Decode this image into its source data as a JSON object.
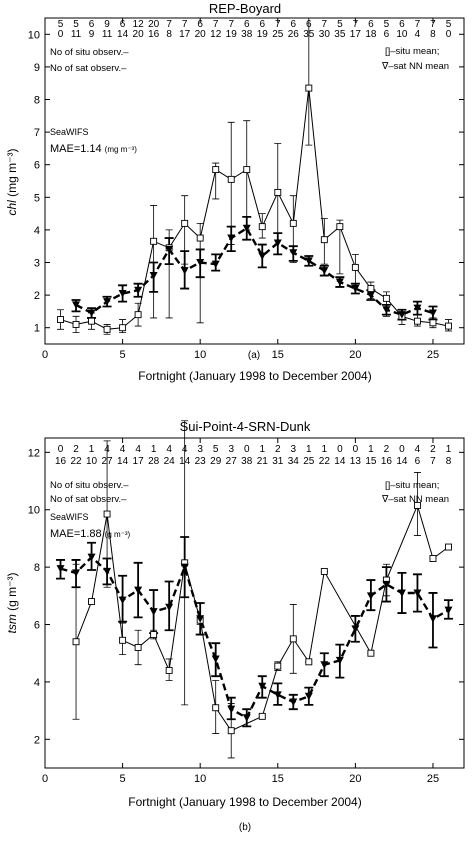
{
  "chart_data": [
    {
      "type": "line",
      "title": "REP-Boyard",
      "xlabel": "Fortnight  (January 1998 to December 2004)",
      "ylabel": "chl (mg m⁻³)",
      "ylabel_var": "chl",
      "ylabel_unit": " (mg m⁻³)",
      "xlim": [
        0,
        27
      ],
      "ylim": [
        0.5,
        10.5
      ],
      "xticks": [
        0,
        5,
        10,
        15,
        20,
        25
      ],
      "yticks": [
        1,
        2,
        3,
        4,
        5,
        6,
        7,
        8,
        9,
        10
      ],
      "panel_label": "(a)",
      "legend": {
        "situ": "[]–situ mean;",
        "sat": "∇–sat NN mean"
      },
      "count_legend": {
        "situ": "No of situ observ.–",
        "sat": "No of sat observ.–"
      },
      "sensor": "SeaWIFS",
      "mae": "MAE=1.14",
      "mae_unit": "(mg m⁻³)",
      "counts": [
        {
          "x": 1,
          "situ": "5",
          "sat": "0"
        },
        {
          "x": 2,
          "situ": "5",
          "sat": "11"
        },
        {
          "x": 3,
          "situ": "6",
          "sat": "9"
        },
        {
          "x": 4,
          "situ": "9",
          "sat": "11"
        },
        {
          "x": 5,
          "situ": "6",
          "sat": "14"
        },
        {
          "x": 6,
          "situ": "12",
          "sat": "20"
        },
        {
          "x": 7,
          "situ": "20",
          "sat": "16"
        },
        {
          "x": 8,
          "situ": "7",
          "sat": "8"
        },
        {
          "x": 9,
          "situ": "7",
          "sat": "17"
        },
        {
          "x": 10,
          "situ": "6",
          "sat": "20"
        },
        {
          "x": 11,
          "situ": "7",
          "sat": "12"
        },
        {
          "x": 12,
          "situ": "7",
          "sat": "19"
        },
        {
          "x": 13,
          "situ": "6",
          "sat": "38"
        },
        {
          "x": 14,
          "situ": "6",
          "sat": "19"
        },
        {
          "x": 15,
          "situ": "7",
          "sat": "25"
        },
        {
          "x": 16,
          "situ": "6",
          "sat": "26"
        },
        {
          "x": 17,
          "situ": "6",
          "sat": "35"
        },
        {
          "x": 18,
          "situ": "7",
          "sat": "30"
        },
        {
          "x": 19,
          "situ": "5",
          "sat": "35"
        },
        {
          "x": 20,
          "situ": "7",
          "sat": "17"
        },
        {
          "x": 21,
          "situ": "6",
          "sat": "18"
        },
        {
          "x": 22,
          "situ": "5",
          "sat": "6"
        },
        {
          "x": 23,
          "situ": "6",
          "sat": "10"
        },
        {
          "x": 24,
          "situ": "7",
          "sat": "4"
        },
        {
          "x": 25,
          "situ": "7",
          "sat": "8"
        },
        {
          "x": 26,
          "situ": "5",
          "sat": "0"
        }
      ],
      "series": [
        {
          "name": "situ mean",
          "style": "solid-square",
          "points": [
            {
              "x": 1,
              "y": 1.25,
              "lo": 0.95,
              "hi": 1.55
            },
            {
              "x": 2,
              "y": 1.1,
              "lo": 0.85,
              "hi": 1.35
            },
            {
              "x": 3,
              "y": 1.2,
              "lo": 0.95,
              "hi": 1.45
            },
            {
              "x": 4,
              "y": 0.95,
              "lo": 0.8,
              "hi": 1.1
            },
            {
              "x": 5,
              "y": 1.0,
              "lo": 0.85,
              "hi": 1.25
            },
            {
              "x": 6,
              "y": 1.4,
              "lo": 1.05,
              "hi": 1.75
            },
            {
              "x": 7,
              "y": 3.65,
              "lo": 1.3,
              "hi": 4.75
            },
            {
              "x": 8,
              "y": 3.45,
              "lo": 1.3,
              "hi": 4.0
            },
            {
              "x": 9,
              "y": 4.2,
              "lo": 2.95,
              "hi": 5.05
            },
            {
              "x": 10,
              "y": 3.75,
              "lo": 1.15,
              "hi": 4.2
            },
            {
              "x": 11,
              "y": 5.85,
              "lo": 4.95,
              "hi": 6.05
            },
            {
              "x": 12,
              "y": 5.55,
              "lo": 3.55,
              "hi": 7.3
            },
            {
              "x": 13,
              "y": 5.85,
              "lo": 4.0,
              "hi": 7.35
            },
            {
              "x": 14,
              "y": 4.1,
              "lo": 3.75,
              "hi": 4.5
            },
            {
              "x": 15,
              "y": 5.15,
              "lo": 3.9,
              "hi": 6.65
            },
            {
              "x": 16,
              "y": 4.2,
              "lo": 3.0,
              "hi": 5.05
            },
            {
              "x": 17,
              "y": 8.35,
              "lo": 6.6,
              "hi": 10.5
            },
            {
              "x": 18,
              "y": 3.7,
              "lo": 2.95,
              "hi": 4.35
            },
            {
              "x": 19,
              "y": 4.1,
              "lo": 2.65,
              "hi": 4.3
            },
            {
              "x": 20,
              "y": 2.85,
              "lo": 2.3,
              "hi": 3.25
            },
            {
              "x": 21,
              "y": 2.2,
              "lo": 1.9,
              "hi": 2.4
            },
            {
              "x": 22,
              "y": 1.9,
              "lo": 1.35,
              "hi": 2.1
            },
            {
              "x": 23,
              "y": 1.35,
              "lo": 1.1,
              "hi": 1.55
            },
            {
              "x": 24,
              "y": 1.2,
              "lo": 1.05,
              "hi": 1.4
            },
            {
              "x": 25,
              "y": 1.15,
              "lo": 1.0,
              "hi": 1.3
            },
            {
              "x": 26,
              "y": 1.05,
              "lo": 0.9,
              "hi": 1.25
            }
          ]
        },
        {
          "name": "sat NN mean",
          "style": "dashed-triangle",
          "points": [
            {
              "x": 2,
              "y": 1.7,
              "lo": 1.5,
              "hi": 1.85
            },
            {
              "x": 3,
              "y": 1.45,
              "lo": 1.3,
              "hi": 1.6
            },
            {
              "x": 4,
              "y": 1.8,
              "lo": 1.65,
              "hi": 1.95
            },
            {
              "x": 5,
              "y": 2.05,
              "lo": 1.8,
              "hi": 2.3
            },
            {
              "x": 6,
              "y": 2.15,
              "lo": 1.95,
              "hi": 2.35
            },
            {
              "x": 7,
              "y": 2.6,
              "lo": 2.1,
              "hi": 3.0
            },
            {
              "x": 8,
              "y": 3.4,
              "lo": 2.95,
              "hi": 3.75
            },
            {
              "x": 9,
              "y": 2.75,
              "lo": 2.2,
              "hi": 3.35
            },
            {
              "x": 10,
              "y": 3.0,
              "lo": 2.55,
              "hi": 3.4
            },
            {
              "x": 11,
              "y": 2.95,
              "lo": 2.75,
              "hi": 3.25
            },
            {
              "x": 12,
              "y": 3.75,
              "lo": 3.35,
              "hi": 4.1
            },
            {
              "x": 13,
              "y": 4.05,
              "lo": 3.7,
              "hi": 4.4
            },
            {
              "x": 14,
              "y": 3.2,
              "lo": 2.85,
              "hi": 3.55
            },
            {
              "x": 15,
              "y": 3.6,
              "lo": 3.25,
              "hi": 3.9
            },
            {
              "x": 16,
              "y": 3.3,
              "lo": 3.05,
              "hi": 3.5
            },
            {
              "x": 17,
              "y": 3.05,
              "lo": 2.9,
              "hi": 3.2
            },
            {
              "x": 18,
              "y": 2.75,
              "lo": 2.6,
              "hi": 2.9
            },
            {
              "x": 19,
              "y": 2.4,
              "lo": 2.25,
              "hi": 2.55
            },
            {
              "x": 20,
              "y": 2.2,
              "lo": 2.05,
              "hi": 2.35
            },
            {
              "x": 21,
              "y": 2.0,
              "lo": 1.85,
              "hi": 2.15
            },
            {
              "x": 22,
              "y": 1.55,
              "lo": 1.4,
              "hi": 1.7
            },
            {
              "x": 23,
              "y": 1.4,
              "lo": 1.25,
              "hi": 1.55
            },
            {
              "x": 24,
              "y": 1.6,
              "lo": 1.4,
              "hi": 1.8
            },
            {
              "x": 25,
              "y": 1.45,
              "lo": 1.25,
              "hi": 1.65
            }
          ]
        }
      ]
    },
    {
      "type": "line",
      "title": "Sui-Point-4-SRN-Dunk",
      "xlabel": "Fortnight  (January 1998 to December 2004)",
      "ylabel": "tsm (g m⁻³)",
      "ylabel_var": "tsm",
      "ylabel_unit": " (g m⁻³)",
      "xlim": [
        0,
        27
      ],
      "ylim": [
        1,
        12.5
      ],
      "xticks": [
        0,
        5,
        10,
        15,
        20,
        25
      ],
      "yticks": [
        2,
        4,
        6,
        8,
        10,
        12
      ],
      "panel_label": "(b)",
      "legend": {
        "situ": "[]–situ mean;",
        "sat": "∇–sat NN mean"
      },
      "count_legend": {
        "situ": "No of situ observ.–",
        "sat": "No of sat observ.–"
      },
      "sensor": "SeaWIFS",
      "mae": "MAE=1.88",
      "mae_unit": "(g m⁻³)",
      "counts": [
        {
          "x": 1,
          "situ": "0",
          "sat": "16"
        },
        {
          "x": 2,
          "situ": "2",
          "sat": "22"
        },
        {
          "x": 3,
          "situ": "1",
          "sat": "10"
        },
        {
          "x": 4,
          "situ": "4",
          "sat": "27"
        },
        {
          "x": 5,
          "situ": "4",
          "sat": "14"
        },
        {
          "x": 6,
          "situ": "4",
          "sat": "17"
        },
        {
          "x": 7,
          "situ": "1",
          "sat": "28"
        },
        {
          "x": 8,
          "situ": "4",
          "sat": "24"
        },
        {
          "x": 9,
          "situ": "4",
          "sat": "14"
        },
        {
          "x": 10,
          "situ": "3",
          "sat": "23"
        },
        {
          "x": 11,
          "situ": "5",
          "sat": "29"
        },
        {
          "x": 12,
          "situ": "3",
          "sat": "27"
        },
        {
          "x": 13,
          "situ": "0",
          "sat": "38"
        },
        {
          "x": 14,
          "situ": "1",
          "sat": "21"
        },
        {
          "x": 15,
          "situ": "2",
          "sat": "31"
        },
        {
          "x": 16,
          "situ": "3",
          "sat": "34"
        },
        {
          "x": 17,
          "situ": "1",
          "sat": "25"
        },
        {
          "x": 18,
          "situ": "1",
          "sat": "22"
        },
        {
          "x": 19,
          "situ": "0",
          "sat": "14"
        },
        {
          "x": 20,
          "situ": "0",
          "sat": "13"
        },
        {
          "x": 21,
          "situ": "1",
          "sat": "15"
        },
        {
          "x": 22,
          "situ": "2",
          "sat": "16"
        },
        {
          "x": 23,
          "situ": "0",
          "sat": "14"
        },
        {
          "x": 24,
          "situ": "4",
          "sat": "6"
        },
        {
          "x": 25,
          "situ": "2",
          "sat": "7"
        },
        {
          "x": 26,
          "situ": "1",
          "sat": "8"
        }
      ],
      "series": [
        {
          "name": "situ mean",
          "style": "solid-square",
          "points": [
            {
              "x": 2,
              "y": 5.4,
              "lo": 2.7,
              "hi": 8.1
            },
            {
              "x": 3,
              "y": 6.8,
              "lo": 6.8,
              "hi": 6.8
            },
            {
              "x": 4,
              "y": 9.85,
              "lo": 7.3,
              "hi": 12.4
            },
            {
              "x": 5,
              "y": 5.45,
              "lo": 4.95,
              "hi": 6.05
            },
            {
              "x": 6,
              "y": 5.2,
              "lo": 4.6,
              "hi": 5.8
            },
            {
              "x": 7,
              "y": 5.65,
              "lo": 5.5,
              "hi": 5.8
            },
            {
              "x": 8,
              "y": 4.4,
              "lo": 4.05,
              "hi": 4.8
            },
            {
              "x": 9,
              "y": 8.15,
              "lo": 3.2,
              "hi": 13.1
            },
            {
              "x": 10,
              "y": 6.15,
              "lo": 6.0,
              "hi": 6.3
            },
            {
              "x": 11,
              "y": 3.1,
              "lo": 2.2,
              "hi": 4.05
            },
            {
              "x": 12,
              "y": 2.3,
              "lo": 1.35,
              "hi": 3.25
            },
            {
              "x": 14,
              "y": 2.8,
              "lo": 2.75,
              "hi": 2.85
            },
            {
              "x": 15,
              "y": 4.55,
              "lo": 4.4,
              "hi": 4.7
            },
            {
              "x": 16,
              "y": 5.5,
              "lo": 4.3,
              "hi": 6.7
            },
            {
              "x": 17,
              "y": 4.7,
              "lo": 4.7,
              "hi": 4.7
            },
            {
              "x": 18,
              "y": 7.85,
              "lo": 7.85,
              "hi": 7.85
            },
            {
              "x": 21,
              "y": 5.0,
              "lo": 5.0,
              "hi": 5.0
            },
            {
              "x": 22,
              "y": 7.55,
              "lo": 7.0,
              "hi": 8.1
            },
            {
              "x": 24,
              "y": 10.15,
              "lo": 9.1,
              "hi": 11.3
            },
            {
              "x": 25,
              "y": 8.3,
              "lo": 8.3,
              "hi": 8.3
            },
            {
              "x": 26,
              "y": 8.7,
              "lo": 8.7,
              "hi": 8.7
            }
          ]
        },
        {
          "name": "sat NN mean",
          "style": "dashed-triangle",
          "points": [
            {
              "x": 1,
              "y": 7.95,
              "lo": 7.6,
              "hi": 8.25
            },
            {
              "x": 2,
              "y": 7.8,
              "lo": 7.3,
              "hi": 8.25
            },
            {
              "x": 3,
              "y": 8.35,
              "lo": 7.9,
              "hi": 8.85
            },
            {
              "x": 4,
              "y": 7.85,
              "lo": 7.4,
              "hi": 8.3
            },
            {
              "x": 5,
              "y": 6.85,
              "lo": 6.1,
              "hi": 7.7
            },
            {
              "x": 6,
              "y": 7.2,
              "lo": 6.25,
              "hi": 8.15
            },
            {
              "x": 7,
              "y": 6.45,
              "lo": 5.7,
              "hi": 7.2
            },
            {
              "x": 8,
              "y": 6.6,
              "lo": 5.8,
              "hi": 7.5
            },
            {
              "x": 9,
              "y": 8.0,
              "lo": 6.95,
              "hi": 9.05
            },
            {
              "x": 10,
              "y": 6.2,
              "lo": 5.65,
              "hi": 6.75
            },
            {
              "x": 11,
              "y": 4.8,
              "lo": 4.2,
              "hi": 5.35
            },
            {
              "x": 12,
              "y": 3.05,
              "lo": 2.7,
              "hi": 3.45
            },
            {
              "x": 13,
              "y": 2.75,
              "lo": 2.45,
              "hi": 3.05
            },
            {
              "x": 14,
              "y": 3.85,
              "lo": 3.45,
              "hi": 4.2
            },
            {
              "x": 15,
              "y": 3.55,
              "lo": 3.2,
              "hi": 3.95
            },
            {
              "x": 16,
              "y": 3.3,
              "lo": 3.05,
              "hi": 3.55
            },
            {
              "x": 17,
              "y": 3.5,
              "lo": 3.2,
              "hi": 3.8
            },
            {
              "x": 18,
              "y": 4.6,
              "lo": 4.2,
              "hi": 5.0
            },
            {
              "x": 19,
              "y": 4.75,
              "lo": 4.15,
              "hi": 5.3
            },
            {
              "x": 20,
              "y": 5.85,
              "lo": 5.4,
              "hi": 6.3
            },
            {
              "x": 21,
              "y": 7.0,
              "lo": 6.5,
              "hi": 7.55
            },
            {
              "x": 22,
              "y": 7.4,
              "lo": 6.8,
              "hi": 8.0
            },
            {
              "x": 23,
              "y": 7.1,
              "lo": 6.4,
              "hi": 7.8
            },
            {
              "x": 24,
              "y": 7.1,
              "lo": 6.45,
              "hi": 7.75
            },
            {
              "x": 25,
              "y": 6.2,
              "lo": 5.2,
              "hi": 7.1
            },
            {
              "x": 26,
              "y": 6.5,
              "lo": 6.2,
              "hi": 6.85
            }
          ]
        }
      ]
    }
  ]
}
